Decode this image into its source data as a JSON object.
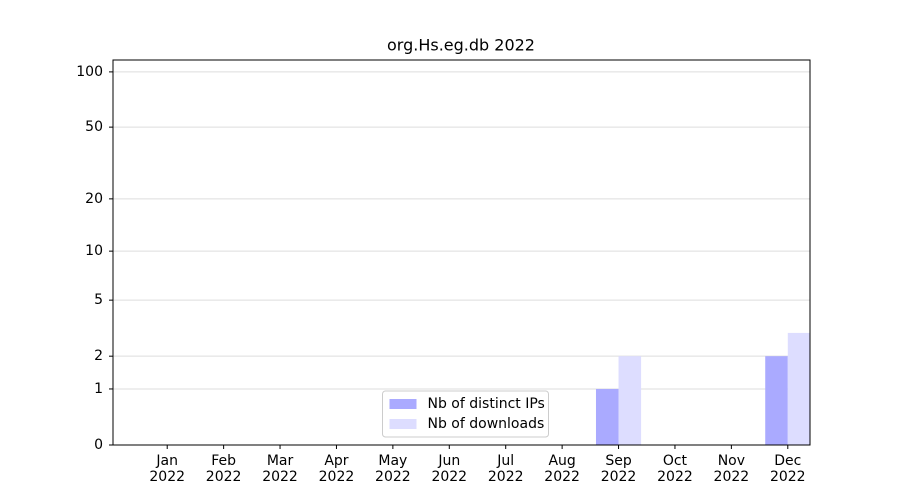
{
  "chart_data": {
    "type": "bar",
    "title": "org.Hs.eg.db 2022",
    "categories": [
      "Jan\n2022",
      "Feb\n2022",
      "Mar\n2022",
      "Apr\n2022",
      "May\n2022",
      "Jun\n2022",
      "Jul\n2022",
      "Aug\n2022",
      "Sep\n2022",
      "Oct\n2022",
      "Nov\n2022",
      "Dec\n2022"
    ],
    "series": [
      {
        "name": "Nb of distinct IPs",
        "color": "#aaaaff",
        "values": [
          0,
          0,
          0,
          0,
          0,
          0,
          0,
          0,
          1,
          0,
          0,
          2
        ]
      },
      {
        "name": "Nb of downloads",
        "color": "#ddddff",
        "values": [
          0,
          0,
          0,
          0,
          0,
          0,
          0,
          0,
          2,
          0,
          0,
          3
        ]
      }
    ],
    "yscale": "log1p",
    "ylim": [
      0,
      116
    ],
    "yticks": [
      0,
      1,
      2,
      5,
      10,
      20,
      50,
      100
    ],
    "grid": true,
    "legend": "lower center"
  }
}
